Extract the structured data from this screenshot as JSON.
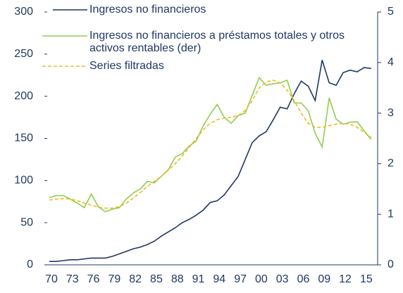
{
  "chart_data": {
    "type": "line",
    "categories": [
      "70",
      null,
      null,
      "73",
      null,
      null,
      "76",
      null,
      null,
      "79",
      null,
      null,
      "82",
      null,
      null,
      "85",
      null,
      null,
      "88",
      null,
      null,
      "91",
      null,
      null,
      "94",
      null,
      null,
      "97",
      null,
      null,
      "00",
      null,
      null,
      "03",
      null,
      null,
      "06",
      null,
      null,
      "09",
      null,
      null,
      "12",
      null,
      null,
      "15",
      null
    ],
    "series": [
      {
        "name": "Ingresos no financieros",
        "color": "#1f3864",
        "dash": false,
        "values": [
          4,
          4,
          5,
          6,
          6,
          7,
          8,
          8,
          8,
          10,
          13,
          16,
          19,
          21,
          24,
          28,
          34,
          39,
          44,
          50,
          54,
          59,
          65,
          74,
          76,
          83,
          94,
          105,
          125,
          145,
          153,
          158,
          172,
          187,
          185,
          203,
          218,
          212,
          195,
          243,
          216,
          213,
          228,
          231,
          229,
          234,
          233
        ]
      },
      {
        "name": "Ingresos no financieros a préstamos totales y otros activos rentables (der)",
        "color": "#8dcf4f",
        "dash": false,
        "axis": "y2",
        "values": [
          1.33,
          1.37,
          1.37,
          1.3,
          1.22,
          1.13,
          1.4,
          1.15,
          1.05,
          1.1,
          1.13,
          1.3,
          1.42,
          1.5,
          1.65,
          1.62,
          1.75,
          1.88,
          2.13,
          2.2,
          2.35,
          2.45,
          2.75,
          2.98,
          3.17,
          2.92,
          2.8,
          2.95,
          3.0,
          3.35,
          3.7,
          3.55,
          3.58,
          3.6,
          3.65,
          3.2,
          3.2,
          3.05,
          2.6,
          2.33,
          3.3,
          2.88,
          2.78,
          2.82,
          2.83,
          2.65,
          2.48
        ]
      },
      {
        "name": "Series filtradas",
        "color": "#f0b928",
        "dash": true,
        "axis": "y2",
        "values": [
          1.28,
          1.3,
          1.31,
          1.3,
          1.27,
          1.22,
          1.18,
          1.14,
          1.12,
          1.12,
          1.15,
          1.22,
          1.32,
          1.43,
          1.55,
          1.65,
          1.75,
          1.87,
          2.0,
          2.15,
          2.32,
          2.5,
          2.67,
          2.8,
          2.87,
          2.9,
          2.92,
          2.95,
          3.05,
          3.25,
          3.5,
          3.62,
          3.65,
          3.6,
          3.45,
          3.25,
          3.0,
          2.8,
          2.72,
          2.72,
          2.75,
          2.78,
          2.8,
          2.78,
          2.72,
          2.62,
          2.52
        ]
      }
    ],
    "ylim": [
      0,
      300
    ],
    "yticks": [
      0,
      50,
      100,
      150,
      200,
      250,
      300
    ],
    "y2lim": [
      0,
      5
    ],
    "y2ticks": [
      0,
      1,
      2,
      3,
      4,
      5
    ]
  }
}
